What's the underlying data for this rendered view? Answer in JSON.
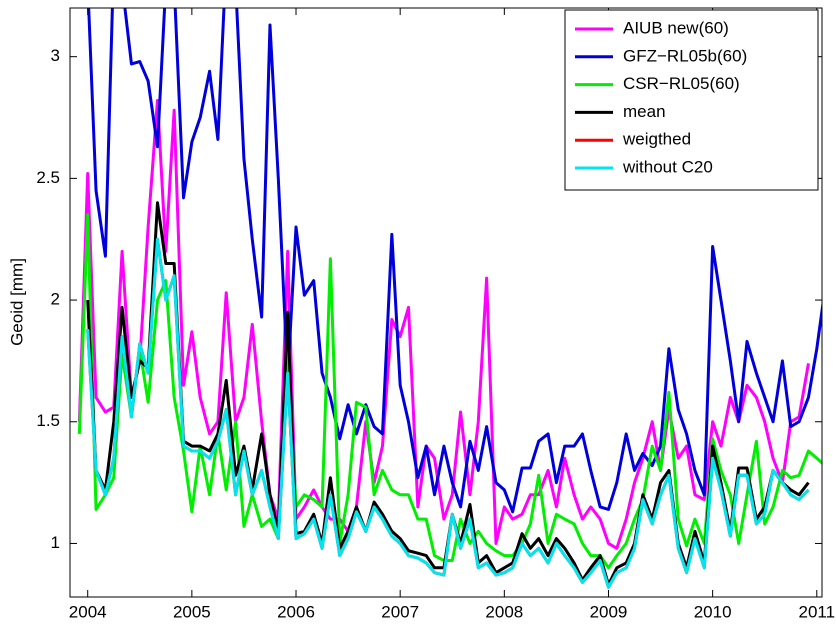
{
  "chart_data": {
    "type": "line",
    "y_label": "Geoid [mm]",
    "x": [
      2003.92,
      2004.0,
      2004.08,
      2004.17,
      2004.25,
      2004.33,
      2004.42,
      2004.5,
      2004.58,
      2004.67,
      2004.75,
      2004.83,
      2004.92,
      2005.0,
      2005.08,
      2005.17,
      2005.25,
      2005.33,
      2005.42,
      2005.5,
      2005.58,
      2005.67,
      2005.75,
      2005.83,
      2005.92,
      2006.0,
      2006.08,
      2006.17,
      2006.25,
      2006.33,
      2006.42,
      2006.5,
      2006.58,
      2006.67,
      2006.75,
      2006.83,
      2006.92,
      2007.0,
      2007.08,
      2007.17,
      2007.25,
      2007.33,
      2007.42,
      2007.5,
      2007.58,
      2007.67,
      2007.75,
      2007.83,
      2007.92,
      2008.0,
      2008.08,
      2008.17,
      2008.25,
      2008.33,
      2008.42,
      2008.5,
      2008.58,
      2008.67,
      2008.75,
      2008.83,
      2008.92,
      2009.0,
      2009.08,
      2009.17,
      2009.25,
      2009.33,
      2009.42,
      2009.5,
      2009.58,
      2009.67,
      2009.75,
      2009.83,
      2009.92,
      2010.0,
      2010.08,
      2010.17,
      2010.25,
      2010.33,
      2010.42,
      2010.5,
      2010.58,
      2010.67,
      2010.75,
      2010.83,
      2010.92,
      2011.0,
      2011.08
    ],
    "series": [
      {
        "name": "AIUB new(60)",
        "color": "#ff00ff",
        "values": [
          1.5,
          2.52,
          1.6,
          1.54,
          1.56,
          2.2,
          1.6,
          1.75,
          2.3,
          2.82,
          2.2,
          2.78,
          1.65,
          1.87,
          1.6,
          1.45,
          1.5,
          2.03,
          1.5,
          1.6,
          1.9,
          1.5,
          1.2,
          1.1,
          2.2,
          1.1,
          1.15,
          1.22,
          1.15,
          1.1,
          1.1,
          1.05,
          1.15,
          1.5,
          1.25,
          1.4,
          1.92,
          1.85,
          1.97,
          1.15,
          1.4,
          1.35,
          1.1,
          1.2,
          1.54,
          1.2,
          1.5,
          2.09,
          1.0,
          1.15,
          1.1,
          1.12,
          1.2,
          1.2,
          1.3,
          1.15,
          1.35,
          1.2,
          1.1,
          1.15,
          1.1,
          1.0,
          0.98,
          1.1,
          1.25,
          1.35,
          1.5,
          1.3,
          1.55,
          1.35,
          1.4,
          1.2,
          1.18,
          1.5,
          1.4,
          1.6,
          1.5,
          1.65,
          1.6,
          1.5,
          1.35,
          1.25,
          1.5,
          1.52,
          1.74,
          null,
          null
        ]
      },
      {
        "name": "GFZ−RL05b(60)",
        "color": "#0000dd",
        "values": [
          3.3,
          3.3,
          2.45,
          2.18,
          3.4,
          3.3,
          2.97,
          2.98,
          2.9,
          2.63,
          3.3,
          3.3,
          2.42,
          2.65,
          2.75,
          2.94,
          2.66,
          3.4,
          3.3,
          2.58,
          2.25,
          1.93,
          3.13,
          2.5,
          1.68,
          2.3,
          2.02,
          2.08,
          1.7,
          1.6,
          1.43,
          1.57,
          1.45,
          1.57,
          1.48,
          1.45,
          2.27,
          1.65,
          1.5,
          1.27,
          1.4,
          1.2,
          1.4,
          1.25,
          1.15,
          1.42,
          1.3,
          1.48,
          1.25,
          1.22,
          1.13,
          1.31,
          1.31,
          1.42,
          1.45,
          1.25,
          1.4,
          1.4,
          1.45,
          1.3,
          1.15,
          1.14,
          1.25,
          1.45,
          1.3,
          1.37,
          1.32,
          1.4,
          1.8,
          1.55,
          1.45,
          1.3,
          1.2,
          2.22,
          2.0,
          1.75,
          1.5,
          1.83,
          1.7,
          1.6,
          1.5,
          1.75,
          1.48,
          1.5,
          1.6,
          1.8,
          2.05
        ]
      },
      {
        "name": "CSR−RL05(60)",
        "color": "#00ee00",
        "values": [
          1.45,
          2.35,
          1.14,
          1.2,
          1.27,
          1.78,
          1.52,
          1.8,
          1.58,
          2.0,
          2.08,
          1.6,
          1.38,
          1.13,
          1.4,
          1.2,
          1.45,
          1.22,
          1.5,
          1.07,
          1.2,
          1.07,
          1.1,
          1.02,
          1.8,
          1.15,
          1.2,
          1.18,
          1.15,
          2.17,
          1.0,
          1.2,
          1.58,
          1.56,
          1.2,
          1.3,
          1.22,
          1.2,
          1.2,
          1.1,
          1.1,
          0.95,
          0.93,
          0.93,
          1.1,
          1.0,
          1.05,
          1.0,
          0.97,
          0.95,
          0.95,
          1.0,
          1.08,
          1.28,
          1.0,
          1.12,
          1.1,
          1.08,
          1.0,
          0.95,
          0.95,
          0.9,
          0.95,
          1.0,
          1.1,
          1.18,
          1.4,
          1.3,
          1.62,
          1.1,
          0.99,
          1.1,
          1.0,
          1.43,
          1.3,
          1.2,
          1.0,
          1.2,
          1.42,
          1.08,
          1.15,
          1.3,
          1.27,
          1.28,
          1.38,
          1.35,
          1.32
        ]
      },
      {
        "name": "mean",
        "color": "#000000",
        "values": [
          null,
          2.0,
          1.3,
          1.22,
          1.5,
          1.97,
          1.6,
          1.75,
          1.72,
          2.4,
          2.15,
          2.15,
          1.42,
          1.4,
          1.4,
          1.38,
          1.45,
          1.67,
          1.28,
          1.4,
          1.22,
          1.45,
          1.2,
          1.05,
          1.95,
          1.04,
          1.05,
          1.12,
          1.0,
          1.27,
          0.98,
          1.05,
          1.15,
          1.05,
          1.17,
          1.12,
          1.05,
          1.02,
          0.97,
          0.96,
          0.95,
          0.9,
          0.9,
          1.12,
          1.0,
          1.16,
          0.92,
          0.95,
          0.88,
          0.9,
          0.92,
          1.04,
          0.98,
          1.02,
          0.95,
          1.02,
          0.98,
          0.92,
          0.85,
          0.9,
          0.95,
          0.83,
          0.9,
          0.92,
          1.0,
          1.2,
          1.1,
          1.25,
          1.3,
          1.0,
          0.9,
          1.05,
          0.92,
          1.4,
          1.25,
          1.05,
          1.31,
          1.31,
          1.1,
          1.15,
          1.3,
          1.25,
          1.22,
          1.2,
          1.25,
          null,
          null
        ]
      },
      {
        "name": "weigthed",
        "color": "#ff0000",
        "values": [
          null,
          1.88,
          1.3,
          1.2,
          1.35,
          1.85,
          1.52,
          1.82,
          1.7,
          2.25,
          2.0,
          2.1,
          1.4,
          1.38,
          1.38,
          1.35,
          1.42,
          1.55,
          1.2,
          1.38,
          1.2,
          1.3,
          1.15,
          1.02,
          1.7,
          1.02,
          1.04,
          1.1,
          0.98,
          1.2,
          0.95,
          1.02,
          1.13,
          1.05,
          1.15,
          1.1,
          1.03,
          1.0,
          0.95,
          0.94,
          0.92,
          0.88,
          0.87,
          1.12,
          0.98,
          1.1,
          0.9,
          0.92,
          0.87,
          0.88,
          0.9,
          1.0,
          0.95,
          0.98,
          0.92,
          1.0,
          0.95,
          0.9,
          0.84,
          0.88,
          0.93,
          0.82,
          0.88,
          0.9,
          0.98,
          1.18,
          1.08,
          1.2,
          1.28,
          0.98,
          0.88,
          1.02,
          0.9,
          1.35,
          1.22,
          1.03,
          1.28,
          1.28,
          1.08,
          1.12,
          1.3,
          1.25,
          1.2,
          1.18,
          1.22,
          null,
          null
        ]
      },
      {
        "name": "without C20",
        "color": "#00e5ee",
        "values": [
          null,
          1.88,
          1.3,
          1.2,
          1.35,
          1.85,
          1.52,
          1.82,
          1.7,
          2.25,
          2.0,
          2.1,
          1.4,
          1.38,
          1.38,
          1.35,
          1.42,
          1.55,
          1.2,
          1.38,
          1.2,
          1.3,
          1.15,
          1.02,
          1.7,
          1.02,
          1.04,
          1.1,
          0.98,
          1.2,
          0.95,
          1.02,
          1.13,
          1.05,
          1.15,
          1.1,
          1.03,
          1.0,
          0.95,
          0.94,
          0.92,
          0.88,
          0.87,
          1.12,
          0.98,
          1.1,
          0.9,
          0.92,
          0.87,
          0.88,
          0.9,
          1.0,
          0.95,
          0.98,
          0.92,
          1.0,
          0.95,
          0.9,
          0.84,
          0.88,
          0.93,
          0.82,
          0.88,
          0.9,
          0.98,
          1.18,
          1.08,
          1.2,
          1.28,
          0.98,
          0.88,
          1.02,
          0.9,
          1.35,
          1.22,
          1.03,
          1.28,
          1.28,
          1.08,
          1.12,
          1.3,
          1.25,
          1.2,
          1.18,
          1.22,
          null,
          null
        ]
      }
    ],
    "xlim": [
      2003.83,
      2011.05
    ],
    "xticks": [
      2004,
      2005,
      2006,
      2007,
      2008,
      2009,
      2010,
      2011
    ],
    "ylim": [
      0.78,
      3.2
    ],
    "yticks": [
      1,
      1.5,
      2,
      2.5,
      3
    ],
    "legend": "upper right"
  }
}
